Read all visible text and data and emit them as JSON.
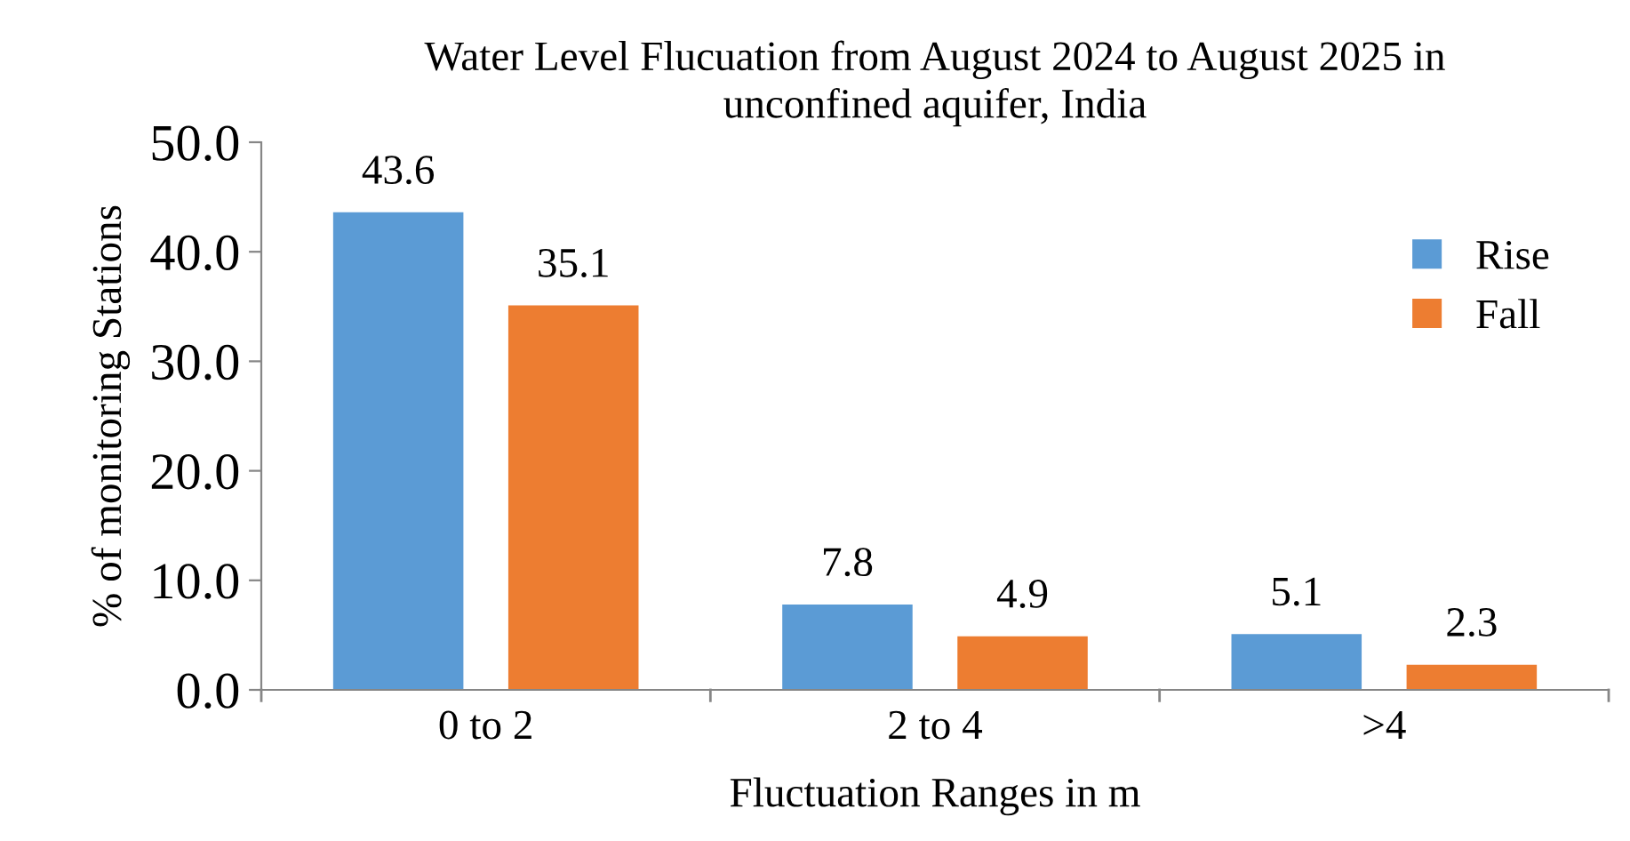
{
  "chart_data": {
    "type": "bar",
    "title": "Water Level Flucuation from August 2024 to August 2025 in\nunconfined aquifer, India",
    "xlabel": "Fluctuation Ranges in m",
    "ylabel": "% of monitoring Stations",
    "categories": [
      "0 to 2",
      "2 to 4",
      ">4"
    ],
    "series": [
      {
        "name": "Rise",
        "color": "#5b9bd5",
        "values": [
          43.6,
          7.8,
          5.1
        ]
      },
      {
        "name": "Fall",
        "color": "#ed7d31",
        "values": [
          35.1,
          4.9,
          2.3
        ]
      }
    ],
    "ylim": [
      0,
      50
    ],
    "yticks": [
      {
        "value": 0,
        "label": "0.0"
      },
      {
        "value": 10,
        "label": "10.0"
      },
      {
        "value": 20,
        "label": "20.0"
      },
      {
        "value": 30,
        "label": "30.0"
      },
      {
        "value": 40,
        "label": "40.0"
      },
      {
        "value": 50,
        "label": "50.0"
      }
    ],
    "data_labels": true,
    "legend": "top right",
    "grid": false
  }
}
